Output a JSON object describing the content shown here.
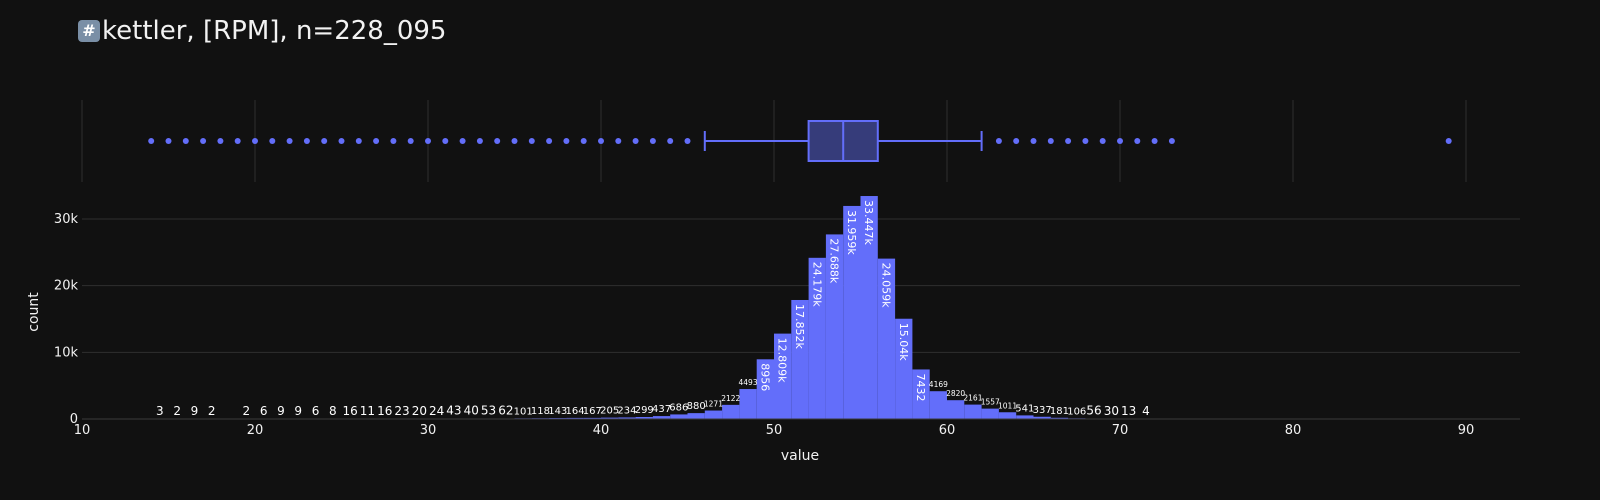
{
  "title": {
    "emoji": "#",
    "text": "kettler, [RPM], n=228_095"
  },
  "colors": {
    "background": "#111111",
    "grid": "#2f2f2f",
    "accent": "#636efa",
    "box_fill": "#363c7a",
    "text": "#f2f2f2"
  },
  "chart_data": [
    {
      "type": "box",
      "orientation": "horizontal",
      "xlim": [
        10,
        93
      ],
      "q1": 52,
      "median": 54,
      "q3": 56,
      "lower_whisker": 46,
      "upper_whisker": 62,
      "outliers": [
        14,
        15,
        16,
        17,
        18,
        19,
        20,
        21,
        22,
        23,
        24,
        25,
        26,
        27,
        28,
        29,
        30,
        31,
        32,
        33,
        34,
        35,
        36,
        37,
        38,
        39,
        40,
        41,
        42,
        43,
        44,
        45,
        63,
        64,
        65,
        66,
        67,
        68,
        69,
        70,
        71,
        72,
        73,
        89
      ],
      "grid": true
    },
    {
      "type": "bar",
      "xlabel": "value",
      "ylabel": "count",
      "xlim": [
        10,
        93
      ],
      "ylim": [
        0,
        33447
      ],
      "x_ticks": [
        10,
        20,
        30,
        40,
        50,
        60,
        70,
        80,
        90
      ],
      "y_ticks": [
        0,
        10000,
        20000,
        30000
      ],
      "y_tick_labels": [
        "0",
        "10k",
        "20k",
        "30k"
      ],
      "bin_width": 1,
      "bins": [
        {
          "x": 14,
          "count": 3,
          "label": "3"
        },
        {
          "x": 15,
          "count": 2,
          "label": "2"
        },
        {
          "x": 16,
          "count": 9,
          "label": "9"
        },
        {
          "x": 17,
          "count": 2,
          "label": "2"
        },
        {
          "x": 19,
          "count": 2,
          "label": "2"
        },
        {
          "x": 20,
          "count": 6,
          "label": "6"
        },
        {
          "x": 21,
          "count": 9,
          "label": "9"
        },
        {
          "x": 22,
          "count": 9,
          "label": "9"
        },
        {
          "x": 23,
          "count": 6,
          "label": "6"
        },
        {
          "x": 24,
          "count": 8,
          "label": "8"
        },
        {
          "x": 25,
          "count": 16,
          "label": "16"
        },
        {
          "x": 26,
          "count": 11,
          "label": "11"
        },
        {
          "x": 27,
          "count": 16,
          "label": "16"
        },
        {
          "x": 28,
          "count": 23,
          "label": "23"
        },
        {
          "x": 29,
          "count": 20,
          "label": "20"
        },
        {
          "x": 30,
          "count": 24,
          "label": "24"
        },
        {
          "x": 31,
          "count": 43,
          "label": "43"
        },
        {
          "x": 32,
          "count": 40,
          "label": "40"
        },
        {
          "x": 33,
          "count": 53,
          "label": "53"
        },
        {
          "x": 34,
          "count": 62,
          "label": "62"
        },
        {
          "x": 35,
          "count": 101,
          "label": "101"
        },
        {
          "x": 36,
          "count": 118,
          "label": "118"
        },
        {
          "x": 37,
          "count": 143,
          "label": "143"
        },
        {
          "x": 38,
          "count": 164,
          "label": "164"
        },
        {
          "x": 39,
          "count": 167,
          "label": "167"
        },
        {
          "x": 40,
          "count": 205,
          "label": "205"
        },
        {
          "x": 41,
          "count": 234,
          "label": "234"
        },
        {
          "x": 42,
          "count": 299,
          "label": "299"
        },
        {
          "x": 43,
          "count": 437,
          "label": "437"
        },
        {
          "x": 44,
          "count": 686,
          "label": "686"
        },
        {
          "x": 45,
          "count": 880,
          "label": "880"
        },
        {
          "x": 46,
          "count": 1271,
          "label": "1271"
        },
        {
          "x": 47,
          "count": 2122,
          "label": "2122"
        },
        {
          "x": 48,
          "count": 4493,
          "label": "4493"
        },
        {
          "x": 49,
          "count": 8956,
          "label": "8956"
        },
        {
          "x": 50,
          "count": 12809,
          "label": "12.809k"
        },
        {
          "x": 51,
          "count": 17852,
          "label": "17.852k"
        },
        {
          "x": 52,
          "count": 24179,
          "label": "24.179k"
        },
        {
          "x": 53,
          "count": 27688,
          "label": "27.688k"
        },
        {
          "x": 54,
          "count": 31959,
          "label": "31.959k"
        },
        {
          "x": 55,
          "count": 33447,
          "label": "33.447k"
        },
        {
          "x": 56,
          "count": 24059,
          "label": "24.059k"
        },
        {
          "x": 57,
          "count": 15040,
          "label": "15.04k"
        },
        {
          "x": 58,
          "count": 7432,
          "label": "7432"
        },
        {
          "x": 59,
          "count": 4169,
          "label": "4169"
        },
        {
          "x": 60,
          "count": 2820,
          "label": "2820"
        },
        {
          "x": 61,
          "count": 2161,
          "label": "2161"
        },
        {
          "x": 62,
          "count": 1557,
          "label": "1557"
        },
        {
          "x": 63,
          "count": 1011,
          "label": "1011"
        },
        {
          "x": 64,
          "count": 541,
          "label": "541"
        },
        {
          "x": 65,
          "count": 337,
          "label": "337"
        },
        {
          "x": 66,
          "count": 181,
          "label": "181"
        },
        {
          "x": 67,
          "count": 106,
          "label": "106"
        },
        {
          "x": 68,
          "count": 56,
          "label": "56"
        },
        {
          "x": 69,
          "count": 30,
          "label": "30"
        },
        {
          "x": 70,
          "count": 13,
          "label": "13"
        },
        {
          "x": 71,
          "count": 4,
          "label": "4"
        }
      ],
      "grid": true
    }
  ]
}
